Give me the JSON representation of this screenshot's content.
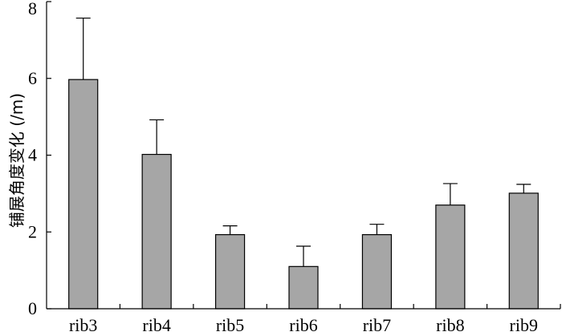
{
  "chart_data": {
    "type": "bar",
    "ylabel": "铺展角度变化 (/m)",
    "xlabel": "",
    "categories": [
      "rib3",
      "rib4",
      "rib5",
      "rib6",
      "rib7",
      "rib8",
      "rib9"
    ],
    "values": [
      5.97,
      4.02,
      1.93,
      1.1,
      1.93,
      2.7,
      3.01
    ],
    "errors": [
      1.6,
      0.9,
      0.23,
      0.53,
      0.27,
      0.56,
      0.23
    ],
    "ylim": [
      0,
      8
    ],
    "yticks": [
      "0",
      "2",
      "4",
      "6",
      "8"
    ],
    "bar_color": "#a6a6a6",
    "grid": false
  }
}
